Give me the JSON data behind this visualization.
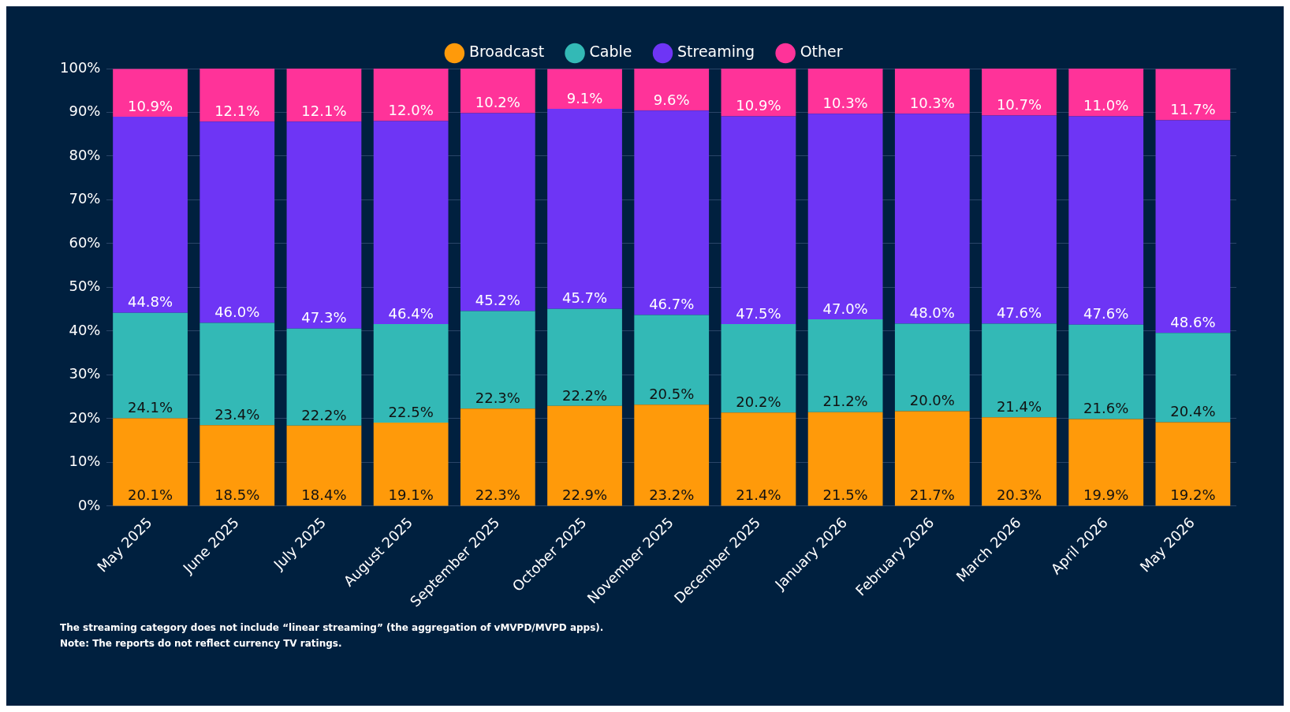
{
  "chart_data": {
    "type": "bar",
    "stacked": true,
    "legend": "top",
    "grid": "y",
    "categories": [
      "May 2025",
      "June 2025",
      "July 2025",
      "August 2025",
      "September 2025",
      "October 2025",
      "November 2025",
      "December 2025",
      "January 2026",
      "February 2026",
      "March 2026",
      "April 2026",
      "May 2026"
    ],
    "series": [
      {
        "name": "Broadcast",
        "color": "#ff9a0a",
        "values": [
          20.1,
          18.5,
          18.4,
          19.1,
          22.3,
          22.9,
          23.2,
          21.4,
          21.5,
          21.7,
          20.3,
          19.9,
          19.2
        ],
        "value_labels": [
          "20.1%",
          "18.5%",
          "18.4%",
          "19.1%",
          "22.3%",
          "22.9%",
          "23.2%",
          "21.4%",
          "21.5%",
          "21.7%",
          "20.3%",
          "19.9%",
          "19.2%"
        ]
      },
      {
        "name": "Cable",
        "color": "#33b9b6",
        "values": [
          24.1,
          23.4,
          22.2,
          22.5,
          22.3,
          22.2,
          20.5,
          20.2,
          21.2,
          20.0,
          21.4,
          21.6,
          20.4
        ],
        "value_labels": [
          "24.1%",
          "23.4%",
          "22.2%",
          "22.5%",
          "22.3%",
          "22.2%",
          "20.5%",
          "20.2%",
          "21.2%",
          "20.0%",
          "21.4%",
          "21.6%",
          "20.4%"
        ]
      },
      {
        "name": "Streaming",
        "color": "#6e35f5",
        "values": [
          44.8,
          46.0,
          47.3,
          46.4,
          45.2,
          45.7,
          46.7,
          47.5,
          47.0,
          48.0,
          47.6,
          47.6,
          48.6
        ],
        "value_labels": [
          "44.8%",
          "46.0%",
          "47.3%",
          "46.4%",
          "45.2%",
          "45.7%",
          "46.7%",
          "47.5%",
          "47.0%",
          "48.0%",
          "47.6%",
          "47.6%",
          "48.6%"
        ]
      },
      {
        "name": "Other",
        "color": "#ff3399",
        "values": [
          10.9,
          12.1,
          12.1,
          12.0,
          10.2,
          9.1,
          9.6,
          10.9,
          10.3,
          10.3,
          10.7,
          11.0,
          11.7
        ],
        "value_labels": [
          "10.9%",
          "12.1%",
          "12.1%",
          "12.0%",
          "10.2%",
          "9.1%",
          "9.6%",
          "10.9%",
          "10.3%",
          "10.3%",
          "10.7%",
          "11.0%",
          "11.7%"
        ]
      }
    ],
    "ylim": [
      0,
      100
    ],
    "yticks": [
      {
        "value": 0,
        "label": "0%"
      },
      {
        "value": 10,
        "label": "10%"
      },
      {
        "value": 20,
        "label": "20%"
      },
      {
        "value": 30,
        "label": "30%"
      },
      {
        "value": 40,
        "label": "40%"
      },
      {
        "value": 50,
        "label": "50%"
      },
      {
        "value": 60,
        "label": "60%"
      },
      {
        "value": 70,
        "label": "70%"
      },
      {
        "value": 80,
        "label": "80%"
      },
      {
        "value": 90,
        "label": "90%"
      },
      {
        "value": 100,
        "label": "100%"
      }
    ],
    "annotations": [
      "The streaming category does not include “linear streaming” (the aggregation of vMVPD/MVPD apps).",
      "Note: The reports do not reflect currency TV ratings."
    ]
  }
}
